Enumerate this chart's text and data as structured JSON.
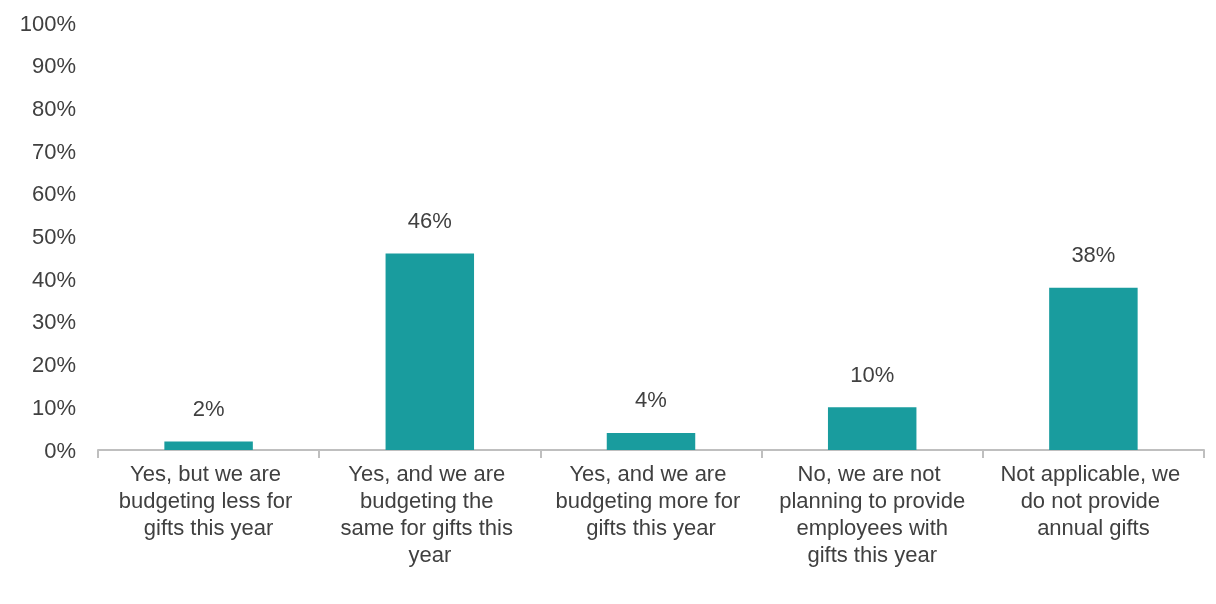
{
  "chart_data": {
    "type": "bar",
    "categories": [
      "Yes, but we are budgeting less for gifts this year",
      "Yes, and we are budgeting the same for gifts this year",
      "Yes, and we are budgeting more for gifts this year",
      "No, we are not planning to provide employees with gifts this year",
      "Not applicable, we do not provide annual gifts"
    ],
    "values": [
      2,
      46,
      4,
      10,
      38
    ],
    "value_labels": [
      "2%",
      "46%",
      "4%",
      "10%",
      "38%"
    ],
    "color": "#199c9e",
    "ylim": [
      0,
      100
    ],
    "yticks": [
      {
        "value": 0,
        "label": "0%"
      },
      {
        "value": 10,
        "label": "10%"
      },
      {
        "value": 20,
        "label": "20%"
      },
      {
        "value": 30,
        "label": "30%"
      },
      {
        "value": 40,
        "label": "40%"
      },
      {
        "value": 50,
        "label": "50%"
      },
      {
        "value": 60,
        "label": "60%"
      },
      {
        "value": 70,
        "label": "70%"
      },
      {
        "value": 80,
        "label": "80%"
      },
      {
        "value": 90,
        "label": "90%"
      },
      {
        "value": 100,
        "label": "100%"
      }
    ],
    "grid": false
  }
}
